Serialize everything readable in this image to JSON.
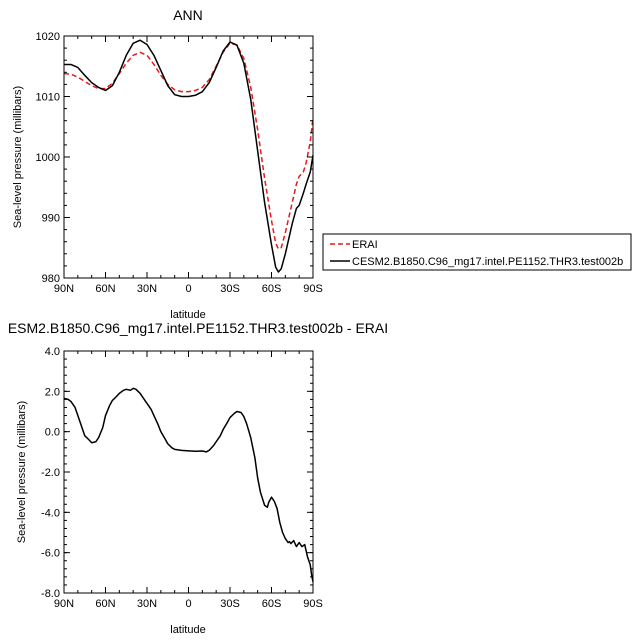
{
  "chart_data": [
    {
      "type": "line",
      "title": "ANN",
      "xlabel": "latitude",
      "ylabel": "Sea-level pressure (millibars)",
      "x_ticks": [
        {
          "lat": 90,
          "label": "90N"
        },
        {
          "lat": 60,
          "label": "60N"
        },
        {
          "lat": 30,
          "label": "30N"
        },
        {
          "lat": 0,
          "label": "0"
        },
        {
          "lat": -30,
          "label": "30S"
        },
        {
          "lat": -60,
          "label": "60S"
        },
        {
          "lat": -90,
          "label": "90S"
        }
      ],
      "xlim": [
        90,
        -90
      ],
      "ylim": [
        980,
        1020
      ],
      "y_ticks": [
        {
          "value": 980,
          "label": "980"
        },
        {
          "value": 990,
          "label": "990"
        },
        {
          "value": 1000,
          "label": "1000"
        },
        {
          "value": 1010,
          "label": "1010"
        },
        {
          "value": 1020,
          "label": "1020"
        }
      ],
      "legend_placement": "outside-right",
      "series": [
        {
          "name": "ERAI",
          "color": "#e41a1c",
          "dash": "dashed",
          "points": [
            [
              90,
              1013.8
            ],
            [
              85,
              1013.7
            ],
            [
              80,
              1013.2
            ],
            [
              75,
              1012.5
            ],
            [
              70,
              1011.8
            ],
            [
              65,
              1011.3
            ],
            [
              60,
              1011.3
            ],
            [
              55,
              1012.2
            ],
            [
              50,
              1013.8
            ],
            [
              45,
              1015.5
            ],
            [
              40,
              1016.8
            ],
            [
              35,
              1017.3
            ],
            [
              30,
              1016.8
            ],
            [
              25,
              1015.3
            ],
            [
              20,
              1013.5
            ],
            [
              15,
              1012.0
            ],
            [
              10,
              1011.1
            ],
            [
              5,
              1010.8
            ],
            [
              0,
              1010.8
            ],
            [
              -5,
              1011.0
            ],
            [
              -10,
              1011.5
            ],
            [
              -15,
              1012.8
            ],
            [
              -20,
              1015.0
            ],
            [
              -25,
              1017.3
            ],
            [
              -30,
              1018.8
            ],
            [
              -35,
              1018.5
            ],
            [
              -40,
              1016.3
            ],
            [
              -45,
              1011.5
            ],
            [
              -50,
              1004.5
            ],
            [
              -55,
              996.5
            ],
            [
              -60,
              989.5
            ],
            [
              -63,
              985.8
            ],
            [
              -65,
              984.8
            ],
            [
              -67,
              985.0
            ],
            [
              -70,
              987.5
            ],
            [
              -75,
              992.5
            ],
            [
              -78,
              995.5
            ],
            [
              -80,
              996.8
            ],
            [
              -83,
              997.5
            ],
            [
              -85,
              999.0
            ],
            [
              -88,
              1002.5
            ],
            [
              -90,
              1006.5
            ]
          ]
        },
        {
          "name": "CESM2.B1850.C96_mg17.intel.PE1152.THR3.test002b",
          "color": "#000000",
          "dash": "solid",
          "points": [
            [
              90,
              1015.3
            ],
            [
              85,
              1015.3
            ],
            [
              80,
              1014.8
            ],
            [
              75,
              1013.5
            ],
            [
              70,
              1012.3
            ],
            [
              65,
              1011.5
            ],
            [
              60,
              1011.0
            ],
            [
              55,
              1011.8
            ],
            [
              50,
              1014.0
            ],
            [
              45,
              1016.8
            ],
            [
              40,
              1018.8
            ],
            [
              35,
              1019.3
            ],
            [
              30,
              1018.6
            ],
            [
              25,
              1016.8
            ],
            [
              20,
              1014.3
            ],
            [
              15,
              1011.8
            ],
            [
              10,
              1010.3
            ],
            [
              5,
              1010.0
            ],
            [
              0,
              1010.0
            ],
            [
              -5,
              1010.2
            ],
            [
              -10,
              1010.8
            ],
            [
              -15,
              1012.3
            ],
            [
              -20,
              1014.8
            ],
            [
              -25,
              1017.5
            ],
            [
              -30,
              1019.0
            ],
            [
              -35,
              1018.5
            ],
            [
              -40,
              1015.5
            ],
            [
              -45,
              1009.5
            ],
            [
              -50,
              1001.0
            ],
            [
              -55,
              992.5
            ],
            [
              -60,
              985.5
            ],
            [
              -63,
              981.8
            ],
            [
              -65,
              981.0
            ],
            [
              -67,
              981.5
            ],
            [
              -70,
              984.0
            ],
            [
              -75,
              989.0
            ],
            [
              -78,
              991.5
            ],
            [
              -80,
              992.0
            ],
            [
              -83,
              994.0
            ],
            [
              -85,
              995.5
            ],
            [
              -88,
              997.5
            ],
            [
              -90,
              1000.3
            ]
          ]
        }
      ]
    },
    {
      "type": "line",
      "title": "ESM2.B1850.C96_mg17.intel.PE1152.THR3.test002b - ERAI",
      "xlabel": "latitude",
      "ylabel": "Sea-level pressure (millibars)",
      "x_ticks": [
        {
          "lat": 90,
          "label": "90N"
        },
        {
          "lat": 60,
          "label": "60N"
        },
        {
          "lat": 30,
          "label": "30N"
        },
        {
          "lat": 0,
          "label": "0"
        },
        {
          "lat": -30,
          "label": "30S"
        },
        {
          "lat": -60,
          "label": "60S"
        },
        {
          "lat": -90,
          "label": "90S"
        }
      ],
      "xlim": [
        90,
        -90
      ],
      "ylim": [
        -8.0,
        4.0
      ],
      "y_ticks": [
        {
          "value": 4.0,
          "label": "4.0"
        },
        {
          "value": 2.0,
          "label": "2.0"
        },
        {
          "value": 0.0,
          "label": "0.0"
        },
        {
          "value": -2.0,
          "label": "-2.0"
        },
        {
          "value": -4.0,
          "label": "-4.0"
        },
        {
          "value": -6.0,
          "label": "-6.0"
        },
        {
          "value": -8.0,
          "label": "-8.0"
        }
      ],
      "series": [
        {
          "name": "",
          "color": "#000000",
          "dash": "solid",
          "points": [
            [
              90,
              1.65
            ],
            [
              87,
              1.6
            ],
            [
              85,
              1.5
            ],
            [
              82,
              1.2
            ],
            [
              80,
              0.8
            ],
            [
              77,
              0.2
            ],
            [
              75,
              -0.2
            ],
            [
              72,
              -0.4
            ],
            [
              70,
              -0.55
            ],
            [
              67,
              -0.5
            ],
            [
              65,
              -0.3
            ],
            [
              62,
              0.2
            ],
            [
              60,
              0.8
            ],
            [
              57,
              1.3
            ],
            [
              55,
              1.55
            ],
            [
              52,
              1.75
            ],
            [
              50,
              1.9
            ],
            [
              47,
              2.05
            ],
            [
              45,
              2.1
            ],
            [
              42,
              2.05
            ],
            [
              40,
              2.15
            ],
            [
              38,
              2.1
            ],
            [
              35,
              1.9
            ],
            [
              32,
              1.6
            ],
            [
              30,
              1.4
            ],
            [
              27,
              1.1
            ],
            [
              25,
              0.8
            ],
            [
              22,
              0.35
            ],
            [
              20,
              0.0
            ],
            [
              17,
              -0.35
            ],
            [
              15,
              -0.6
            ],
            [
              12,
              -0.8
            ],
            [
              10,
              -0.88
            ],
            [
              5,
              -0.93
            ],
            [
              0,
              -0.95
            ],
            [
              -5,
              -0.97
            ],
            [
              -10,
              -0.96
            ],
            [
              -13,
              -1.0
            ],
            [
              -15,
              -0.92
            ],
            [
              -18,
              -0.7
            ],
            [
              -20,
              -0.5
            ],
            [
              -23,
              -0.2
            ],
            [
              -25,
              0.1
            ],
            [
              -28,
              0.45
            ],
            [
              -30,
              0.7
            ],
            [
              -33,
              0.9
            ],
            [
              -35,
              1.0
            ],
            [
              -38,
              0.95
            ],
            [
              -40,
              0.75
            ],
            [
              -42,
              0.4
            ],
            [
              -45,
              -0.3
            ],
            [
              -48,
              -1.3
            ],
            [
              -50,
              -2.3
            ],
            [
              -52,
              -3.0
            ],
            [
              -55,
              -3.65
            ],
            [
              -57,
              -3.75
            ],
            [
              -58,
              -3.5
            ],
            [
              -60,
              -3.25
            ],
            [
              -62,
              -3.45
            ],
            [
              -64,
              -3.8
            ],
            [
              -66,
              -4.5
            ],
            [
              -68,
              -5.0
            ],
            [
              -70,
              -5.3
            ],
            [
              -72,
              -5.5
            ],
            [
              -73,
              -5.45
            ],
            [
              -74,
              -5.55
            ],
            [
              -76,
              -5.4
            ],
            [
              -78,
              -5.7
            ],
            [
              -80,
              -5.5
            ],
            [
              -82,
              -5.7
            ],
            [
              -84,
              -5.6
            ],
            [
              -86,
              -6.2
            ],
            [
              -88,
              -6.6
            ],
            [
              -89,
              -7.1
            ],
            [
              -90,
              -7.45
            ]
          ]
        }
      ]
    }
  ]
}
